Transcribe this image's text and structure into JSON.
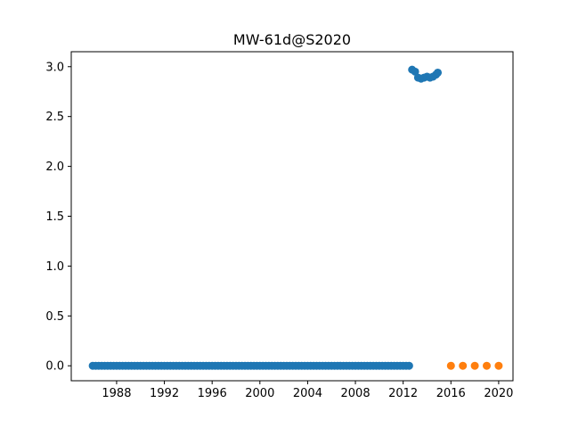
{
  "chart_data": {
    "type": "scatter",
    "title": "MW-61d@S2020",
    "xlabel": "",
    "ylabel": "",
    "xlim": [
      1984.2,
      2021.2
    ],
    "ylim": [
      -0.15,
      3.15
    ],
    "x_ticks": [
      1988,
      1992,
      1996,
      2000,
      2004,
      2008,
      2012,
      2016,
      2020
    ],
    "y_ticks": [
      0.0,
      0.5,
      1.0,
      1.5,
      2.0,
      2.5,
      3.0
    ],
    "x_tick_labels": [
      "1988",
      "1992",
      "1996",
      "2000",
      "2004",
      "2008",
      "2012",
      "2016",
      "2020"
    ],
    "y_tick_labels": [
      "0.0",
      "0.5",
      "1.0",
      "1.5",
      "2.0",
      "2.5",
      "3.0"
    ],
    "grid": false,
    "legend": "none",
    "series": [
      {
        "color": "#1f77b4",
        "x_start": 1986.0,
        "x_end": 2012.6,
        "x_step": 0.25,
        "y_constant": 0.0,
        "extra_points": [
          {
            "x": 2012.75,
            "y": 2.97
          },
          {
            "x": 2013.0,
            "y": 2.95
          },
          {
            "x": 2013.25,
            "y": 2.89
          },
          {
            "x": 2013.5,
            "y": 2.88
          },
          {
            "x": 2013.75,
            "y": 2.89
          },
          {
            "x": 2014.0,
            "y": 2.9
          },
          {
            "x": 2014.25,
            "y": 2.89
          },
          {
            "x": 2014.5,
            "y": 2.9
          },
          {
            "x": 2014.75,
            "y": 2.92
          },
          {
            "x": 2014.9,
            "y": 2.94
          }
        ]
      },
      {
        "color": "#ff7f0e",
        "points": [
          {
            "x": 2016.0,
            "y": 0.0
          },
          {
            "x": 2017.0,
            "y": 0.0
          },
          {
            "x": 2018.0,
            "y": 0.0
          },
          {
            "x": 2019.0,
            "y": 0.0
          },
          {
            "x": 2020.0,
            "y": 0.0
          }
        ]
      }
    ]
  }
}
